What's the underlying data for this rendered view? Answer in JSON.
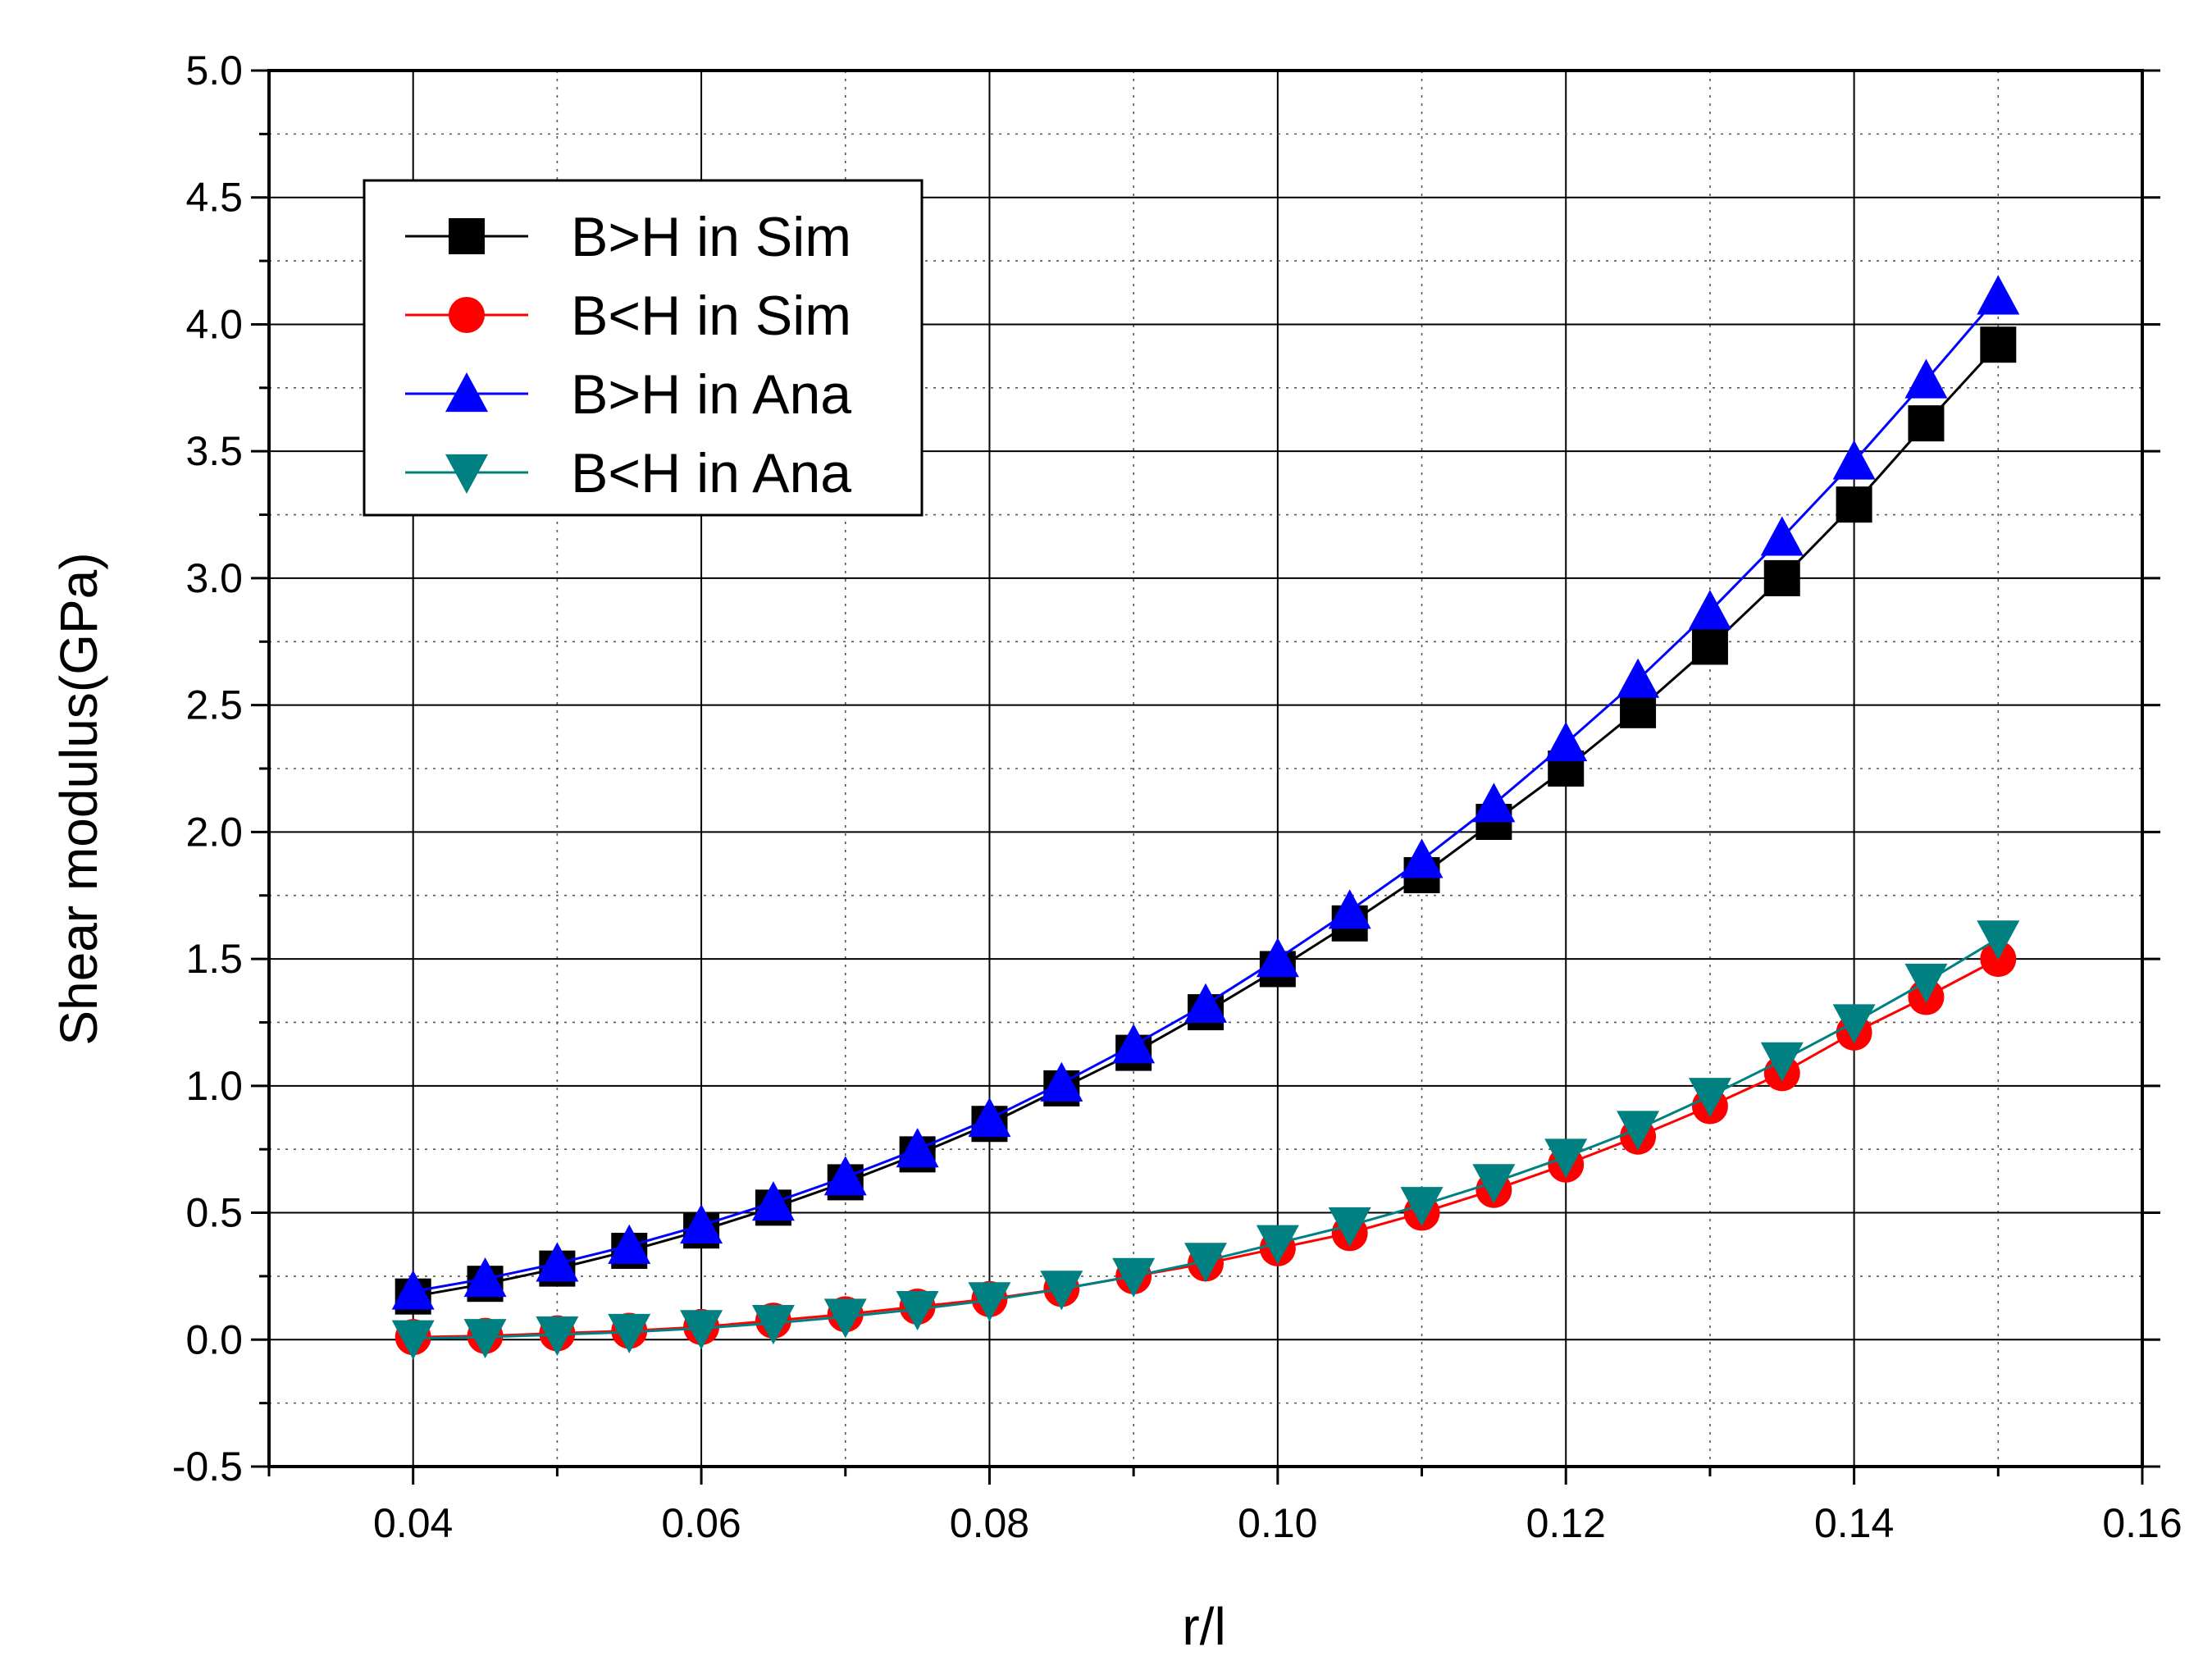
{
  "chart_data": {
    "type": "line",
    "title": "",
    "xlabel": "r/l",
    "ylabel": "Shear modulus(GPa)",
    "xlim": [
      0.03,
      0.16
    ],
    "ylim": [
      -0.5,
      5.0
    ],
    "x_ticks": [
      0.04,
      0.06,
      0.08,
      0.1,
      0.12,
      0.14,
      0.16
    ],
    "x_tick_labels": [
      "0.04",
      "0.06",
      "0.08",
      "0.10",
      "0.12",
      "0.14",
      "0.16"
    ],
    "y_ticks": [
      -0.5,
      0.0,
      0.5,
      1.0,
      1.5,
      2.0,
      2.5,
      3.0,
      3.5,
      4.0,
      4.5,
      5.0
    ],
    "y_tick_labels": [
      "-0.5",
      "0.0",
      "0.5",
      "1.0",
      "1.5",
      "2.0",
      "2.5",
      "3.0",
      "3.5",
      "4.0",
      "4.5",
      "5.0"
    ],
    "grid": true,
    "legend_position": "top-left",
    "x": [
      0.04,
      0.045,
      0.05,
      0.055,
      0.06,
      0.065,
      0.07,
      0.075,
      0.08,
      0.085,
      0.09,
      0.095,
      0.1,
      0.105,
      0.11,
      0.115,
      0.12,
      0.125,
      0.13,
      0.135,
      0.14,
      0.145,
      0.15
    ],
    "series": [
      {
        "name": "B>H in Sim",
        "color": "#000000",
        "marker": "square",
        "values": [
          0.17,
          0.22,
          0.28,
          0.35,
          0.43,
          0.52,
          0.62,
          0.73,
          0.85,
          0.99,
          1.13,
          1.29,
          1.46,
          1.64,
          1.83,
          2.04,
          2.25,
          2.48,
          2.73,
          3.0,
          3.29,
          3.61,
          3.92
        ]
      },
      {
        "name": "B<H in Sim",
        "color": "#ff0000",
        "marker": "circle",
        "values": [
          0.01,
          0.015,
          0.025,
          0.035,
          0.05,
          0.075,
          0.1,
          0.13,
          0.16,
          0.2,
          0.25,
          0.3,
          0.36,
          0.42,
          0.5,
          0.59,
          0.69,
          0.8,
          0.92,
          1.05,
          1.21,
          1.35,
          1.5
        ]
      },
      {
        "name": "B>H in Ana",
        "color": "#0000ff",
        "marker": "triangle-up",
        "values": [
          0.19,
          0.24,
          0.3,
          0.37,
          0.45,
          0.54,
          0.64,
          0.75,
          0.87,
          1.01,
          1.16,
          1.32,
          1.5,
          1.69,
          1.89,
          2.11,
          2.35,
          2.6,
          2.87,
          3.16,
          3.46,
          3.78,
          4.11
        ]
      },
      {
        "name": "B<H in Ana",
        "color": "#008080",
        "marker": "triangle-down",
        "values": [
          0.005,
          0.01,
          0.02,
          0.03,
          0.045,
          0.065,
          0.09,
          0.12,
          0.155,
          0.2,
          0.25,
          0.31,
          0.38,
          0.45,
          0.53,
          0.62,
          0.72,
          0.83,
          0.96,
          1.1,
          1.25,
          1.41,
          1.58
        ]
      }
    ]
  }
}
